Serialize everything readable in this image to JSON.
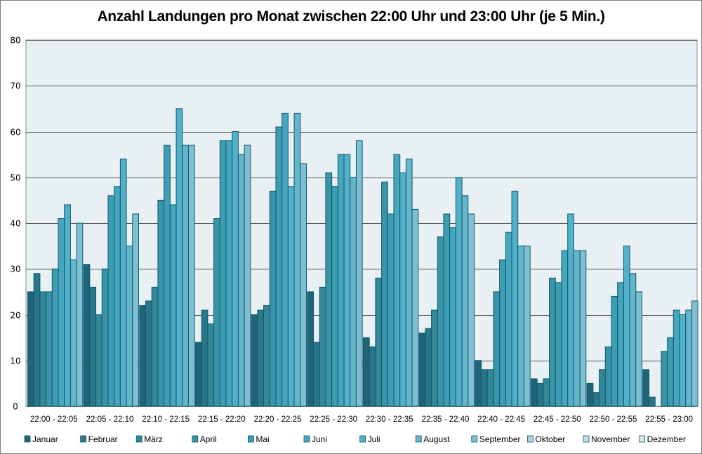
{
  "chart_data": {
    "type": "bar",
    "title": "Anzahl Landungen pro Monat zwischen 22:00 Uhr und 23:00 Uhr (je 5 Min.)",
    "xlabel": "",
    "ylabel": "",
    "ylim": [
      0,
      80
    ],
    "yticks": [
      0,
      10,
      20,
      30,
      40,
      50,
      60,
      70,
      80
    ],
    "grid": true,
    "legend_position": "bottom",
    "categories": [
      "22:00 - 22:05",
      "22:05 - 22:10",
      "22:10 - 22:15",
      "22:15 - 22:20",
      "22:20 - 22:25",
      "22:25 - 22:30",
      "22:30 - 22:35",
      "22:35 - 22:40",
      "22:40 - 22:45",
      "22:45 - 22:50",
      "22:50 - 22:55",
      "22:55 - 23:00"
    ],
    "series": [
      {
        "name": "Januar",
        "color": "#1f6577",
        "values": [
          25,
          31,
          22,
          14,
          20,
          25,
          15,
          16,
          10,
          6,
          5,
          8
        ]
      },
      {
        "name": "Februar",
        "color": "#2b7589",
        "values": [
          29,
          26,
          23,
          21,
          21,
          14,
          13,
          17,
          8,
          5,
          3,
          2
        ]
      },
      {
        "name": "März",
        "color": "#348799",
        "values": [
          25,
          20,
          26,
          18,
          22,
          26,
          28,
          21,
          8,
          6,
          8,
          0
        ]
      },
      {
        "name": "April",
        "color": "#3a93a6",
        "values": [
          25,
          30,
          45,
          41,
          47,
          51,
          49,
          37,
          25,
          28,
          13,
          12
        ]
      },
      {
        "name": "Mai",
        "color": "#3e9db2",
        "values": [
          30,
          46,
          57,
          58,
          61,
          48,
          42,
          42,
          32,
          27,
          24,
          15
        ]
      },
      {
        "name": "Juni",
        "color": "#45a6bd",
        "values": [
          41,
          48,
          44,
          58,
          64,
          55,
          55,
          39,
          38,
          34,
          27,
          21
        ]
      },
      {
        "name": "Juli",
        "color": "#52b0c8",
        "values": [
          44,
          54,
          65,
          60,
          48,
          55,
          51,
          50,
          47,
          42,
          35,
          20
        ]
      },
      {
        "name": "August",
        "color": "#66b5cb",
        "values": [
          32,
          35,
          57,
          55,
          64,
          50,
          54,
          46,
          35,
          34,
          29,
          21
        ]
      },
      {
        "name": "September",
        "color": "#7fbfd1",
        "values": [
          40,
          42,
          57,
          57,
          53,
          58,
          43,
          42,
          35,
          34,
          25,
          23
        ]
      },
      {
        "name": "Oktober",
        "color": "#a7d3df",
        "values": []
      },
      {
        "name": "November",
        "color": "#bfe0e9",
        "values": []
      },
      {
        "name": "Dezember",
        "color": "#d3eaf0",
        "values": []
      }
    ]
  },
  "colors": {
    "plot_background": "#e8f0f4",
    "gridline": "#5a5a5a",
    "bar_outline": "#0f5a6e"
  }
}
